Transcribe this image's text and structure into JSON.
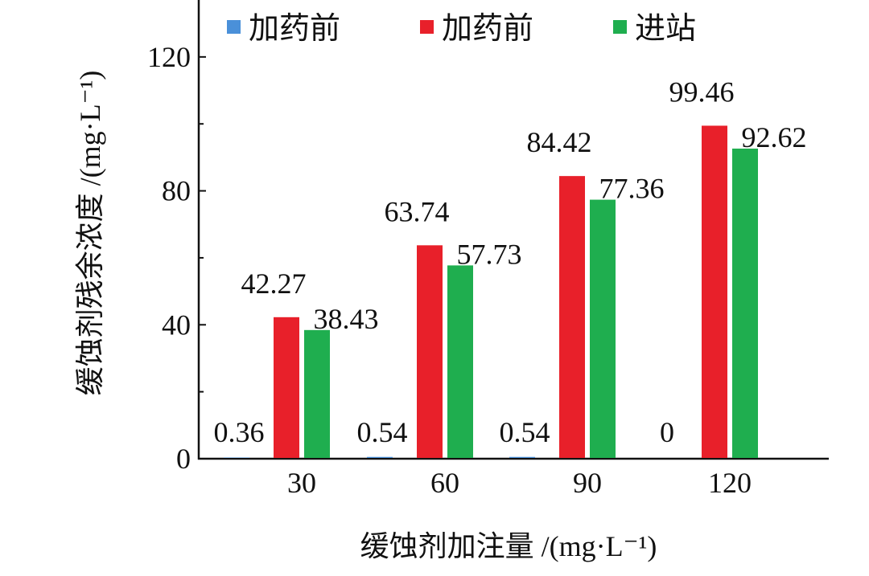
{
  "chart_data": {
    "type": "bar",
    "title": "",
    "xlabel": "缓蚀剂加注量 /(mg·L⁻¹)",
    "ylabel": "缓蚀剂残余浓度 /(mg·L⁻¹)",
    "categories": [
      "30",
      "60",
      "90",
      "120"
    ],
    "ylim": [
      0,
      137
    ],
    "yticks": [
      0,
      40,
      80,
      120
    ],
    "yticks_minor": [
      20,
      60,
      100
    ],
    "grid": false,
    "legend_position": "top",
    "series": [
      {
        "name": "加药前",
        "color": "#4a90d9",
        "values": [
          0.36,
          0.54,
          0.54,
          0
        ],
        "labels": [
          "0.36",
          "0.54",
          "0.54",
          "0"
        ]
      },
      {
        "name": "加药前",
        "color": "#e8202a",
        "values": [
          42.27,
          63.74,
          84.42,
          99.46
        ],
        "labels": [
          "42.27",
          "63.74",
          "84.42",
          "99.46"
        ]
      },
      {
        "name": "进站",
        "color": "#1fae4f",
        "values": [
          38.43,
          57.73,
          77.36,
          92.62
        ],
        "labels": [
          "38.43",
          "57.73",
          "77.36",
          "92.62"
        ]
      }
    ]
  }
}
